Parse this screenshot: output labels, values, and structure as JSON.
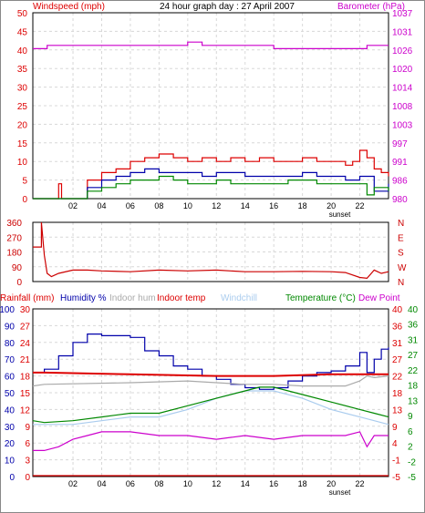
{
  "chart_data": [
    {
      "type": "line",
      "panel": "wind-barometer",
      "title": "24 hour graph day : 27 April 2007",
      "left_axis_label": "Windspeed (mph)",
      "right_axis_label": "Barometer (hPa)",
      "left_ticks": [
        "0",
        "5",
        "10",
        "15",
        "20",
        "25",
        "30",
        "35",
        "40",
        "45",
        "50"
      ],
      "right_ticks": [
        "980",
        "986",
        "991",
        "997",
        "1003",
        "1008",
        "1014",
        "1020",
        "1026",
        "1031",
        "1037"
      ],
      "x_ticks": [
        "02",
        "04",
        "06",
        "08",
        "10",
        "12",
        "14",
        "16",
        "18",
        "20",
        "22"
      ],
      "x_note": "sunset",
      "ylim_left": [
        0,
        50
      ],
      "ylim_right": [
        980,
        1037
      ],
      "xlim_hours": [
        -0.8,
        24
      ],
      "grid": true,
      "series": [
        {
          "axis": "right",
          "color": "#cc00cc",
          "x": [
            -0.8,
            0,
            0.2,
            2,
            9,
            10,
            10.2,
            11,
            15.5,
            16,
            22,
            22.5,
            24
          ],
          "y": [
            1026,
            1026,
            1027,
            1027,
            1027,
            1028,
            1028,
            1027,
            1027,
            1026,
            1026,
            1027,
            1027
          ]
        },
        {
          "axis": "left",
          "color": "#dd0000",
          "x": [
            -0.8,
            1,
            1,
            1.2,
            1.2,
            1.5,
            1.5,
            2.5,
            3,
            4,
            5,
            6,
            7,
            8,
            9,
            10,
            11,
            12,
            13,
            14,
            15,
            16,
            17,
            18,
            19,
            20,
            21,
            21.5,
            22,
            22.5,
            23,
            23.5,
            24
          ],
          "y": [
            0,
            0,
            4,
            4,
            0,
            0,
            0,
            0,
            5,
            7,
            8,
            10,
            11,
            12,
            11,
            10,
            11,
            10,
            11,
            10,
            11,
            10,
            10,
            11,
            10,
            10,
            9,
            10,
            13,
            11,
            8,
            7,
            6
          ]
        },
        {
          "axis": "left",
          "color": "#0000aa",
          "x": [
            -0.8,
            2.5,
            3,
            4,
            5,
            6,
            7,
            8,
            9,
            10,
            11,
            12,
            13,
            14,
            15,
            16,
            17,
            18,
            19,
            20,
            21,
            22,
            23,
            24
          ],
          "y": [
            0,
            0,
            3,
            5,
            6,
            7,
            8,
            7,
            7,
            7,
            6,
            7,
            7,
            6,
            6,
            6,
            6,
            7,
            6,
            6,
            5,
            6,
            2,
            4
          ]
        },
        {
          "axis": "left",
          "color": "#008800",
          "x": [
            -0.8,
            2.5,
            3,
            4,
            5,
            6,
            7,
            8,
            9,
            10,
            11,
            12,
            13,
            14,
            15,
            16,
            17,
            18,
            19,
            20,
            21,
            22,
            22.5,
            23,
            24
          ],
          "y": [
            0,
            0,
            2,
            3,
            4,
            5,
            5,
            6,
            5,
            4,
            4,
            5,
            4,
            4,
            4,
            4,
            5,
            5,
            4,
            4,
            4,
            4,
            1,
            3,
            2
          ]
        }
      ]
    },
    {
      "type": "line",
      "panel": "wind-direction",
      "left_ticks": [
        "0",
        "90",
        "180",
        "270",
        "360"
      ],
      "right_ticks": [
        "N",
        "E",
        "S",
        "W",
        "N"
      ],
      "ylim": [
        0,
        360
      ],
      "xlim_hours": [
        -0.8,
        24
      ],
      "series": [
        {
          "color": "#cc0000",
          "x": [
            -0.8,
            -0.2,
            -0.2,
            0,
            0.2,
            0.5,
            1,
            2,
            3,
            4,
            6,
            8,
            10,
            12,
            14,
            16,
            18,
            20,
            21,
            22,
            22.5,
            23,
            23.5,
            24
          ],
          "y": [
            210,
            210,
            360,
            160,
            50,
            30,
            50,
            70,
            70,
            65,
            60,
            70,
            65,
            70,
            60,
            60,
            62,
            60,
            55,
            25,
            20,
            70,
            50,
            60
          ]
        }
      ]
    },
    {
      "type": "line",
      "panel": "temperature-humidity",
      "legend": [
        "Rainfall (mm)",
        "Humidity %",
        "Indoor hum",
        "Indoor temp",
        "Windchill",
        "Temperature (°C)",
        "Dew Point"
      ],
      "legend_colors": [
        "#dd0000",
        "#0000aa",
        "#aaaaaa",
        "#dd0000",
        "#aaccee",
        "#008800",
        "#cc00cc"
      ],
      "humidity_ticks": [
        "0",
        "10",
        "20",
        "30",
        "40",
        "50",
        "60",
        "70",
        "80",
        "90",
        "100"
      ],
      "rainfall_ticks": [
        "0",
        "3",
        "6",
        "9",
        "12",
        "15",
        "18",
        "21",
        "24",
        "27",
        "30"
      ],
      "temp_right_ticks": [
        "-5",
        "-1",
        "4",
        "9",
        "13",
        "18",
        "22",
        "27",
        "31",
        "36",
        "40"
      ],
      "dew_right_ticks": [
        "-5",
        "-2",
        "2",
        "6",
        "9",
        "13",
        "18",
        "22",
        "27",
        "31",
        "36",
        "40"
      ],
      "x_ticks": [
        "02",
        "04",
        "06",
        "08",
        "10",
        "12",
        "14",
        "16",
        "18",
        "20",
        "22"
      ],
      "x_note": "sunset",
      "ylim_humidity": [
        0,
        100
      ],
      "ylim_temp": [
        -5,
        40
      ],
      "xlim_hours": [
        -0.8,
        24
      ],
      "series": [
        {
          "name": "Humidity %",
          "axis": "humidity",
          "color": "#0000aa",
          "x": [
            -0.8,
            0,
            1,
            2,
            3,
            4,
            5,
            6,
            7,
            8,
            9,
            10,
            11,
            12,
            13,
            14,
            15,
            16,
            17,
            18,
            19,
            20,
            21,
            22,
            22.5,
            23,
            23.5,
            24
          ],
          "y": [
            62,
            64,
            72,
            80,
            85,
            84,
            84,
            83,
            75,
            72,
            66,
            64,
            60,
            58,
            55,
            53,
            52,
            53,
            57,
            60,
            62,
            63,
            66,
            74,
            62,
            70,
            76,
            77
          ]
        },
        {
          "name": "Indoor temp",
          "axis": "humidity",
          "color": "#dd0000",
          "x": [
            -0.8,
            0,
            6,
            12,
            16,
            20,
            24
          ],
          "y": [
            62,
            62,
            61,
            60,
            60,
            61,
            61
          ]
        },
        {
          "name": "Indoor hum",
          "axis": "humidity",
          "color": "#aaaaaa",
          "x": [
            -0.8,
            0,
            6,
            10,
            12,
            14,
            16,
            18,
            20,
            21,
            22,
            22.5,
            23,
            24
          ],
          "y": [
            54,
            55,
            56,
            57,
            56,
            55,
            55,
            54,
            54,
            54,
            57,
            60,
            59,
            60
          ]
        },
        {
          "name": "Windchill",
          "axis": "temp",
          "color": "#aaccee",
          "x": [
            -0.8,
            0,
            2,
            4,
            6,
            8,
            10,
            12,
            14,
            16,
            18,
            20,
            22,
            23,
            24
          ],
          "y": [
            9,
            9,
            9,
            10,
            11,
            11,
            13,
            16,
            18,
            18,
            16,
            13,
            11,
            10,
            9
          ]
        },
        {
          "name": "Temperature (°C)",
          "axis": "temp",
          "color": "#008800",
          "x": [
            -0.8,
            0,
            2,
            4,
            6,
            8,
            10,
            12,
            14,
            15,
            16,
            18,
            20,
            22,
            23,
            24
          ],
          "y": [
            10,
            9.5,
            10,
            11,
            12,
            12,
            14,
            16,
            18,
            19,
            19,
            17,
            15,
            13,
            12,
            11
          ]
        },
        {
          "name": "Dew Point",
          "axis": "temp",
          "color": "#cc00cc",
          "x": [
            -0.8,
            0,
            1,
            2,
            3,
            4,
            6,
            8,
            10,
            12,
            14,
            16,
            18,
            20,
            21,
            22,
            22.5,
            23,
            24
          ],
          "y": [
            2,
            2,
            3,
            5,
            6,
            7,
            7,
            6,
            6,
            5,
            6,
            5,
            6,
            6,
            6,
            7,
            3,
            6,
            6
          ]
        },
        {
          "name": "Rainfall (mm)",
          "axis": "rainfall",
          "color": "#dd0000",
          "x": [
            -0.8,
            24
          ],
          "y": [
            0,
            0
          ]
        }
      ]
    }
  ]
}
